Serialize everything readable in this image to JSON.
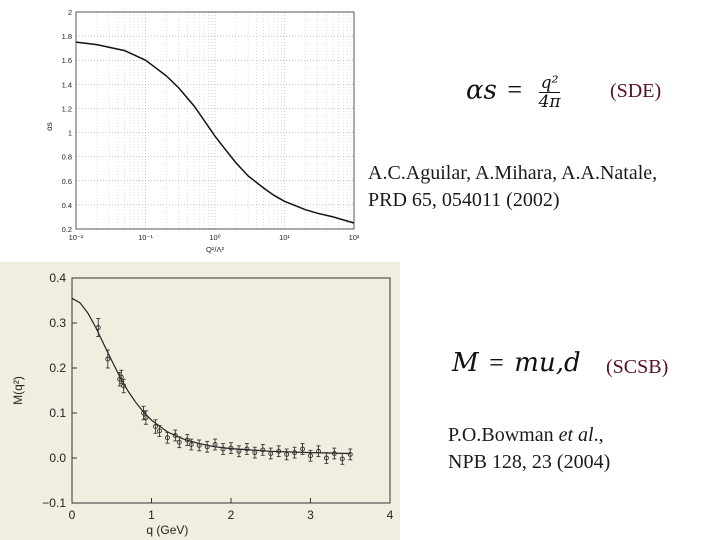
{
  "chart_data": [
    {
      "type": "line",
      "xscale": "log",
      "xlim": [
        0.01,
        100
      ],
      "ylim": [
        0.2,
        2.0
      ],
      "xticks": [
        "10⁻²",
        "10⁻¹",
        "10⁰",
        "10¹",
        "10²"
      ],
      "xtick_values": [
        0.01,
        0.1,
        1,
        10,
        100
      ],
      "yticks": [
        "2",
        "1.8",
        "1.6",
        "1.4",
        "1.2",
        "1",
        "0.8",
        "0.6",
        "0.4",
        "0.2"
      ],
      "ytick_values": [
        2.0,
        1.8,
        1.6,
        1.4,
        1.2,
        1.0,
        0.8,
        0.6,
        0.4,
        0.2
      ],
      "xlabel": "Q²/Λ²",
      "ylabel": "αs",
      "grid": true,
      "series": [
        {
          "x": [
            0.01,
            0.02,
            0.05,
            0.1,
            0.2,
            0.3,
            0.5,
            0.7,
            1,
            1.5,
            2,
            3,
            5,
            7,
            10,
            20,
            30,
            50,
            100
          ],
          "y": [
            1.75,
            1.73,
            1.68,
            1.6,
            1.47,
            1.37,
            1.22,
            1.1,
            0.97,
            0.84,
            0.75,
            0.64,
            0.54,
            0.48,
            0.43,
            0.36,
            0.33,
            0.3,
            0.25
          ]
        }
      ]
    },
    {
      "type": "scatter",
      "xlim": [
        0,
        4
      ],
      "ylim": [
        -0.1,
        0.4
      ],
      "xticks": [
        "0",
        "1",
        "2",
        "3",
        "4"
      ],
      "xtick_values": [
        0,
        1,
        2,
        3,
        4
      ],
      "yticks": [
        "0.4",
        "0.3",
        "0.2",
        "0.1",
        "0.0",
        "−0.1"
      ],
      "ytick_values": [
        0.4,
        0.3,
        0.2,
        0.1,
        0.0,
        -0.1
      ],
      "xlabel": "q (GeV)",
      "ylabel": "M(q²)",
      "grid": false,
      "series": [
        {
          "kind": "line",
          "x": [
            0,
            0.1,
            0.2,
            0.3,
            0.4,
            0.5,
            0.6,
            0.7,
            0.8,
            0.9,
            1.0,
            1.2,
            1.4,
            1.6,
            1.8,
            2.0,
            2.5,
            3.0,
            3.5
          ],
          "y": [
            0.355,
            0.345,
            0.322,
            0.29,
            0.253,
            0.216,
            0.181,
            0.15,
            0.124,
            0.102,
            0.084,
            0.058,
            0.042,
            0.032,
            0.025,
            0.021,
            0.015,
            0.012,
            0.01
          ]
        },
        {
          "kind": "points",
          "x": [
            0.33,
            0.45,
            0.6,
            0.62,
            0.65,
            0.9,
            0.93,
            1.05,
            1.1,
            1.2,
            1.3,
            1.35,
            1.45,
            1.5,
            1.6,
            1.7,
            1.8,
            1.9,
            2.0,
            2.1,
            2.2,
            2.3,
            2.4,
            2.5,
            2.6,
            2.7,
            2.8,
            2.9,
            3.0,
            3.1,
            3.2,
            3.3,
            3.4,
            3.5
          ],
          "y": [
            0.29,
            0.22,
            0.175,
            0.18,
            0.16,
            0.1,
            0.09,
            0.07,
            0.06,
            0.045,
            0.05,
            0.035,
            0.04,
            0.03,
            0.028,
            0.025,
            0.03,
            0.02,
            0.022,
            0.015,
            0.02,
            0.012,
            0.018,
            0.01,
            0.015,
            0.008,
            0.012,
            0.02,
            0.005,
            0.015,
            0.0,
            0.01,
            -0.002,
            0.008
          ],
          "err": [
            0.02,
            0.02,
            0.015,
            0.015,
            0.015,
            0.015,
            0.015,
            0.015,
            0.012,
            0.012,
            0.012,
            0.012,
            0.012,
            0.012,
            0.012,
            0.012,
            0.012,
            0.012,
            0.012,
            0.012,
            0.012,
            0.012,
            0.012,
            0.012,
            0.012,
            0.012,
            0.012,
            0.012,
            0.012,
            0.012,
            0.012,
            0.012,
            0.012,
            0.012
          ]
        }
      ]
    }
  ],
  "annotations": {
    "sde_formula": {
      "lhs": "αs",
      "eq": "=",
      "num": "q²",
      "den": "4π"
    },
    "sde_tag": "(SDE)",
    "sde_ref_line1": "A.C.Aguilar, A.Mihara, A.A.Natale,",
    "sde_ref_line2": "PRD 65, 054011 (2002)",
    "scsb_formula": {
      "lhs": "M",
      "eq": "=",
      "rhs": "mu,d"
    },
    "scsb_tag": "(SCSB)",
    "scsb_ref_author": "P.O.Bowman ",
    "scsb_ref_etal": "et al",
    "scsb_ref_dot": ".,",
    "scsb_ref_line2": "NPB 128, 23 (2004)"
  },
  "colors": {
    "photo_bg": "#f1eedf",
    "curve": "#111111",
    "grid": "#c8c8c8",
    "tag": "#5a1020"
  }
}
